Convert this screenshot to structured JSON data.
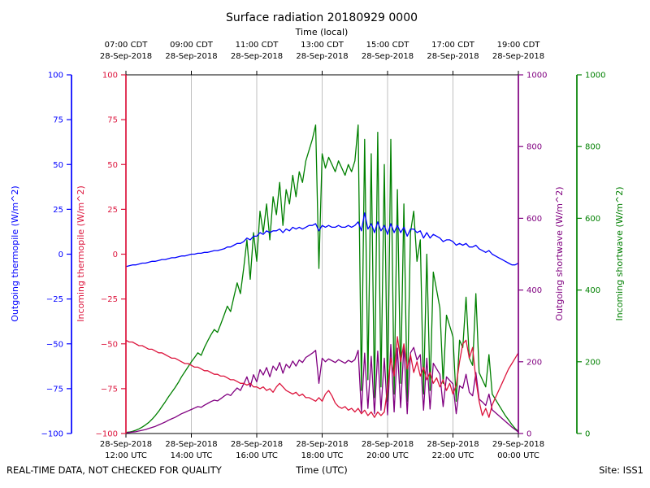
{
  "footer": {
    "disclaimer": "REAL-TIME DATA, NOT CHECKED FOR QUALITY",
    "site": "Site: ISS1"
  },
  "chart_data": {
    "type": "line",
    "title": "Surface radiation 20180929 0000",
    "top_xlabel": "Time (local)",
    "xlabel": "Time (UTC)",
    "layout": {
      "grid": "vertical x gridlines only",
      "legend": "none",
      "x_range_hours_utc": [
        12,
        24
      ]
    },
    "x_hours_utc": {
      "start": 12.0,
      "step": 0.1,
      "count": 121
    },
    "x_ticks": {
      "hours_utc": [
        12,
        14,
        16,
        18,
        20,
        22,
        24
      ],
      "top_labels": [
        [
          "07:00 CDT",
          "28-Sep-2018"
        ],
        [
          "09:00 CDT",
          "28-Sep-2018"
        ],
        [
          "11:00 CDT",
          "28-Sep-2018"
        ],
        [
          "13:00 CDT",
          "28-Sep-2018"
        ],
        [
          "15:00 CDT",
          "28-Sep-2018"
        ],
        [
          "17:00 CDT",
          "28-Sep-2018"
        ],
        [
          "19:00 CDT",
          "28-Sep-2018"
        ]
      ],
      "bottom_labels": [
        [
          "28-Sep-2018",
          "12:00 UTC"
        ],
        [
          "28-Sep-2018",
          "14:00 UTC"
        ],
        [
          "28-Sep-2018",
          "16:00 UTC"
        ],
        [
          "28-Sep-2018",
          "18:00 UTC"
        ],
        [
          "28-Sep-2018",
          "20:00 UTC"
        ],
        [
          "28-Sep-2018",
          "22:00 UTC"
        ],
        [
          "29-Sep-2018",
          "00:00 UTC"
        ]
      ]
    },
    "axes": {
      "left_outer": {
        "label": "Outgoing thermopile (W/m^2)",
        "color": "#0000ff",
        "min": -100,
        "max": 100,
        "ticks": [
          100,
          75,
          50,
          25,
          0,
          -25,
          -50,
          -75,
          -100
        ]
      },
      "left_inner": {
        "label": "Incoming thermopile (W/m^2)",
        "color": "#dc143c",
        "min": -100,
        "max": 100,
        "ticks": [
          100,
          75,
          50,
          25,
          0,
          -25,
          -50,
          -75,
          -100
        ]
      },
      "right_inner": {
        "label": "Outgoing shortwave (W/m^2)",
        "color": "#800080",
        "min": 0,
        "max": 1000,
        "ticks": [
          1000,
          800,
          600,
          400,
          200,
          0
        ]
      },
      "right_outer": {
        "label": "Incoming shortwave (W/m^2)",
        "color": "#008000",
        "min": 0,
        "max": 1000,
        "ticks": [
          1000,
          800,
          600,
          400,
          200,
          0
        ]
      }
    },
    "series": [
      {
        "name": "Incoming shortwave",
        "axis": "right_outer",
        "color": "#008000",
        "values": [
          3,
          4,
          6,
          9,
          13,
          18,
          24,
          31,
          40,
          50,
          62,
          75,
          88,
          102,
          115,
          128,
          142,
          158,
          172,
          186,
          200,
          212,
          225,
          218,
          240,
          258,
          275,
          290,
          282,
          305,
          330,
          355,
          340,
          380,
          420,
          390,
          460,
          540,
          430,
          560,
          480,
          620,
          560,
          640,
          540,
          660,
          610,
          700,
          580,
          680,
          640,
          720,
          660,
          730,
          700,
          760,
          790,
          820,
          860,
          460,
          780,
          740,
          770,
          750,
          730,
          760,
          740,
          720,
          750,
          730,
          760,
          860,
          120,
          820,
          150,
          780,
          100,
          840,
          130,
          750,
          90,
          820,
          110,
          680,
          140,
          640,
          90,
          560,
          620,
          480,
          540,
          110,
          500,
          120,
          450,
          400,
          350,
          140,
          330,
          300,
          270,
          90,
          260,
          240,
          380,
          210,
          190,
          390,
          170,
          150,
          130,
          220,
          110,
          95,
          80,
          65,
          50,
          38,
          25,
          14,
          6
        ]
      },
      {
        "name": "Outgoing shortwave",
        "axis": "right_inner",
        "color": "#800080",
        "values": [
          2,
          3,
          4,
          5,
          7,
          9,
          11,
          14,
          17,
          20,
          24,
          28,
          32,
          37,
          41,
          45,
          50,
          55,
          59,
          63,
          67,
          71,
          75,
          73,
          79,
          84,
          89,
          93,
          91,
          97,
          104,
          110,
          106,
          117,
          127,
          120,
          138,
          158,
          130,
          164,
          144,
          178,
          163,
          184,
          158,
          188,
          176,
          198,
          168,
          193,
          183,
          202,
          188,
          205,
          198,
          212,
          218,
          224,
          232,
          140,
          210,
          200,
          208,
          203,
          198,
          206,
          201,
          196,
          204,
          199,
          206,
          232,
          60,
          224,
          70,
          215,
          55,
          230,
          65,
          210,
          52,
          248,
          60,
          238,
          72,
          245,
          55,
          225,
          240,
          205,
          220,
          65,
          210,
          68,
          196,
          180,
          165,
          75,
          158,
          148,
          138,
          55,
          133,
          126,
          165,
          115,
          105,
          170,
          96,
          88,
          78,
          110,
          66,
          58,
          50,
          42,
          34,
          26,
          18,
          11,
          4
        ]
      },
      {
        "name": "Incoming thermopile",
        "axis": "left_inner",
        "color": "#dc143c",
        "values": [
          -48,
          -49,
          -49,
          -50,
          -51,
          -51,
          -52,
          -53,
          -53,
          -54,
          -55,
          -55,
          -56,
          -57,
          -58,
          -58,
          -59,
          -60,
          -61,
          -61,
          -62,
          -63,
          -63,
          -64,
          -65,
          -65,
          -66,
          -67,
          -67,
          -68,
          -68,
          -69,
          -70,
          -70,
          -71,
          -72,
          -72,
          -73,
          -72,
          -74,
          -74,
          -75,
          -74,
          -76,
          -75,
          -77,
          -74,
          -72,
          -74,
          -76,
          -77,
          -78,
          -77,
          -79,
          -78,
          -80,
          -80,
          -81,
          -82,
          -80,
          -82,
          -78,
          -76,
          -79,
          -83,
          -85,
          -86,
          -85,
          -87,
          -86,
          -88,
          -86,
          -89,
          -87,
          -90,
          -88,
          -91,
          -88,
          -90,
          -88,
          -75,
          -58,
          -68,
          -46,
          -60,
          -50,
          -64,
          -56,
          -66,
          -60,
          -68,
          -63,
          -70,
          -66,
          -72,
          -69,
          -74,
          -70,
          -76,
          -72,
          -78,
          -73,
          -60,
          -50,
          -48,
          -58,
          -52,
          -70,
          -82,
          -90,
          -86,
          -91,
          -84,
          -80,
          -76,
          -72,
          -68,
          -64,
          -61,
          -58,
          -55
        ]
      },
      {
        "name": "Outgoing thermopile",
        "axis": "left_outer",
        "color": "#0000ff",
        "values": [
          -7,
          -6.5,
          -6,
          -6,
          -5.5,
          -5,
          -5,
          -4.5,
          -4,
          -4,
          -3.5,
          -3,
          -3,
          -2.5,
          -2,
          -2,
          -1.5,
          -1,
          -1,
          -0.5,
          0,
          0,
          0.5,
          0.5,
          1,
          1,
          1.5,
          2,
          2,
          2.5,
          3,
          4,
          4,
          5,
          6,
          6,
          7,
          9,
          8,
          10,
          10,
          12,
          11,
          13,
          12,
          13,
          13,
          14,
          12,
          14,
          13,
          15,
          14,
          15,
          14,
          15,
          16,
          16,
          17,
          13,
          16,
          15,
          16,
          15,
          15,
          16,
          15,
          15,
          16,
          15,
          16,
          18,
          13,
          23,
          14,
          17,
          12,
          18,
          13,
          16,
          11,
          17,
          12,
          16,
          12,
          15,
          10,
          14,
          14,
          12,
          13,
          9,
          12,
          9,
          11,
          10,
          9,
          7,
          8,
          8,
          7,
          5,
          6,
          5,
          6,
          4,
          4,
          5,
          3,
          2,
          1,
          2,
          0,
          -1,
          -2,
          -3,
          -4,
          -5,
          -6,
          -6,
          -5
        ]
      }
    ]
  }
}
